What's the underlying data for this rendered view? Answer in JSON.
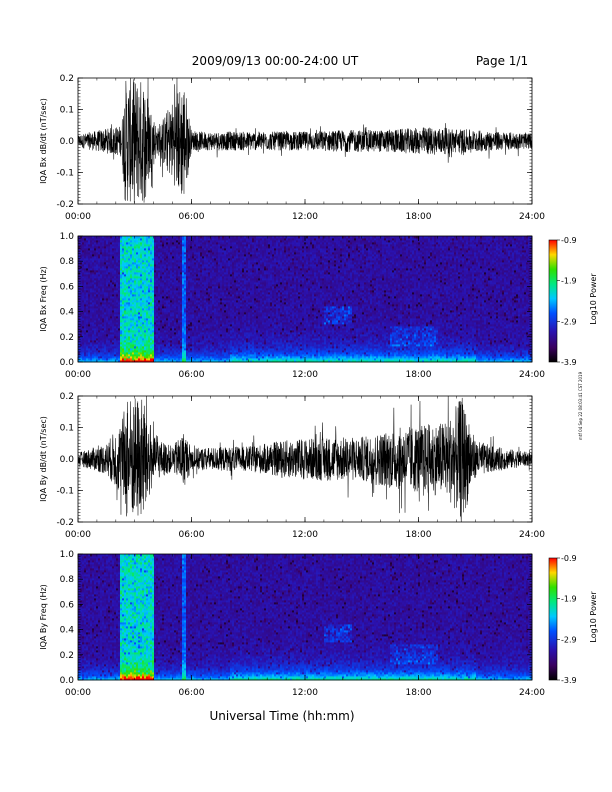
{
  "header": {
    "title": "2009/09/13  00:00-24:00 UT",
    "page": "Page 1/1"
  },
  "footer": {
    "xlabel": "Universal Time (hh:mm)",
    "side_note": "mtf 04 Sep 22 08:03:41 CST 2019"
  },
  "chart_data": [
    {
      "type": "line",
      "ylabel": "IQA Bx dB/dt (nT/sec)",
      "ylim": [
        -0.2,
        0.2
      ],
      "yticks": [
        "-0.2",
        "-0.1",
        "0.0",
        "0.1",
        "0.2"
      ],
      "xlim": [
        0,
        24
      ],
      "xticks": [
        "00:00",
        "06:00",
        "12:00",
        "18:00",
        "24:00"
      ],
      "series": [
        {
          "x": [
            0,
            2.3,
            2.5,
            2.8,
            3.1,
            3.5,
            3.8,
            4.2,
            5.6,
            6,
            9,
            12,
            14,
            16,
            17.5,
            18.5,
            20,
            22,
            24
          ],
          "amplitude": [
            0.02,
            0.05,
            0.2,
            0.2,
            0.2,
            0.2,
            0.12,
            0.04,
            0.2,
            0.03,
            0.03,
            0.03,
            0.035,
            0.035,
            0.04,
            0.045,
            0.04,
            0.03,
            0.025
          ]
        }
      ]
    },
    {
      "type": "heatmap",
      "ylabel": "IQA Bx Freq (Hz)",
      "ylim": [
        0,
        1
      ],
      "yticks": [
        "0.0",
        "0.2",
        "0.4",
        "0.6",
        "0.8",
        "1.0"
      ],
      "xlim": [
        0,
        24
      ],
      "xticks": [
        "00:00",
        "06:00",
        "12:00",
        "18:00",
        "24:00"
      ],
      "colorbar": {
        "label": "Log10 Power",
        "ticks": [
          "-0.9",
          "-1.9",
          "-2.9",
          "-3.9"
        ],
        "range": [
          -3.9,
          -0.9
        ]
      }
    },
    {
      "type": "line",
      "ylabel": "IQA By dB/dt (nT/sec)",
      "ylim": [
        -0.2,
        0.2
      ],
      "yticks": [
        "-0.2",
        "-0.1",
        "0.0",
        "0.1",
        "0.2"
      ],
      "xlim": [
        0,
        24
      ],
      "xticks": [
        "00:00",
        "06:00",
        "12:00",
        "18:00",
        "24:00"
      ],
      "series": [
        {
          "x": [
            0,
            1.5,
            2.3,
            2.6,
            3,
            3.5,
            4,
            5,
            5.6,
            6,
            9,
            11,
            13,
            15,
            17,
            19.5,
            20.3,
            21,
            22,
            24
          ],
          "amplitude": [
            0.02,
            0.05,
            0.12,
            0.2,
            0.2,
            0.2,
            0.07,
            0.04,
            0.09,
            0.035,
            0.04,
            0.06,
            0.07,
            0.07,
            0.1,
            0.12,
            0.2,
            0.06,
            0.04,
            0.02
          ]
        }
      ]
    },
    {
      "type": "heatmap",
      "ylabel": "IQA By Freq (Hz)",
      "ylim": [
        0,
        1
      ],
      "yticks": [
        "0.0",
        "0.2",
        "0.4",
        "0.6",
        "0.8",
        "1.0"
      ],
      "xlim": [
        0,
        24
      ],
      "xticks": [
        "00:00",
        "06:00",
        "12:00",
        "18:00",
        "24:00"
      ],
      "colorbar": {
        "label": "Log10 Power",
        "ticks": [
          "-0.9",
          "-1.9",
          "-2.9",
          "-3.9"
        ],
        "range": [
          -3.9,
          -0.9
        ]
      }
    }
  ]
}
